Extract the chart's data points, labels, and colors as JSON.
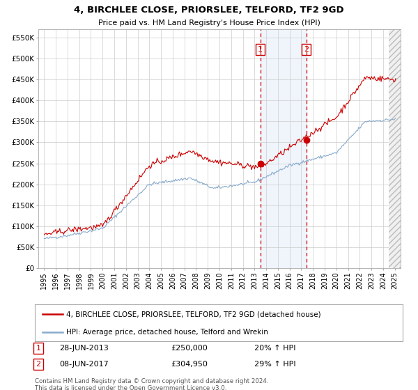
{
  "title1": "4, BIRCHLEE CLOSE, PRIORSLEE, TELFORD, TF2 9GD",
  "title2": "Price paid vs. HM Land Registry's House Price Index (HPI)",
  "legend_label1": "4, BIRCHLEE CLOSE, PRIORSLEE, TELFORD, TF2 9GD (detached house)",
  "legend_label2": "HPI: Average price, detached house, Telford and Wrekin",
  "transaction1_date": "28-JUN-2013",
  "transaction1_price": "£250,000",
  "transaction1_hpi": "20% ↑ HPI",
  "transaction2_date": "08-JUN-2017",
  "transaction2_price": "£304,950",
  "transaction2_hpi": "29% ↑ HPI",
  "footer": "Contains HM Land Registry data © Crown copyright and database right 2024.\nThis data is licensed under the Open Government Licence v3.0.",
  "line1_color": "#cc0000",
  "line2_color": "#88aacc",
  "point1_x": 2013.49,
  "point1_y": 250000,
  "point2_x": 2017.44,
  "point2_y": 304950,
  "vline1_x": 2013.49,
  "vline2_x": 2017.44,
  "shade_start": 2013.49,
  "shade_end": 2017.44,
  "ylim_min": 0,
  "ylim_max": 570000,
  "xlim_min": 1994.5,
  "xlim_max": 2025.5,
  "yticks": [
    0,
    50000,
    100000,
    150000,
    200000,
    250000,
    300000,
    350000,
    400000,
    450000,
    500000,
    550000
  ],
  "ytick_labels": [
    "£0",
    "£50K",
    "£100K",
    "£150K",
    "£200K",
    "£250K",
    "£300K",
    "£350K",
    "£400K",
    "£450K",
    "£500K",
    "£550K"
  ],
  "xtick_years": [
    1995,
    1996,
    1997,
    1998,
    1999,
    2000,
    2001,
    2002,
    2003,
    2004,
    2005,
    2006,
    2007,
    2008,
    2009,
    2010,
    2011,
    2012,
    2013,
    2014,
    2015,
    2016,
    2017,
    2018,
    2019,
    2020,
    2021,
    2022,
    2023,
    2024,
    2025
  ],
  "bg_color": "#ffffff",
  "grid_color": "#cccccc"
}
